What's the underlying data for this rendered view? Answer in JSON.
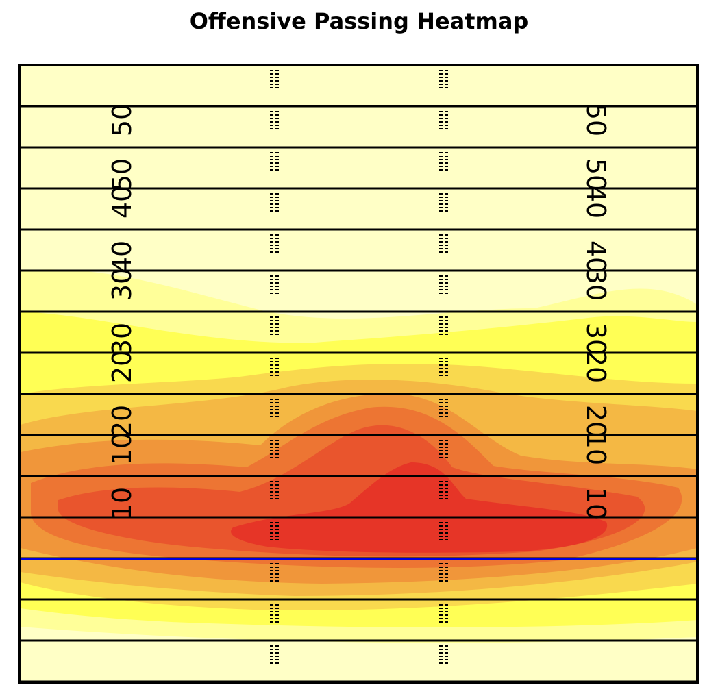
{
  "chart_data": {
    "type": "heatmap",
    "title": "Offensive Passing Heatmap",
    "xlabel": "",
    "ylabel": "",
    "grid": false,
    "legend": "none",
    "field": {
      "yard_line_interval": 5,
      "yardage_labels": [
        "10",
        "20",
        "30",
        "40",
        "50"
      ],
      "line_of_scrimmage_color": "#0000dd",
      "field_color": "#ffffc6"
    },
    "density_levels": [
      {
        "level": 1,
        "color": "#ffff99"
      },
      {
        "level": 2,
        "color": "#ffff55"
      },
      {
        "level": 3,
        "color": "#f9d94e"
      },
      {
        "level": 4,
        "color": "#f4b844"
      },
      {
        "level": 5,
        "color": "#f0963a"
      },
      {
        "level": 6,
        "color": "#ed7533"
      },
      {
        "level": 7,
        "color": "#e9552d"
      },
      {
        "level": 8,
        "color": "#e63527"
      }
    ]
  }
}
